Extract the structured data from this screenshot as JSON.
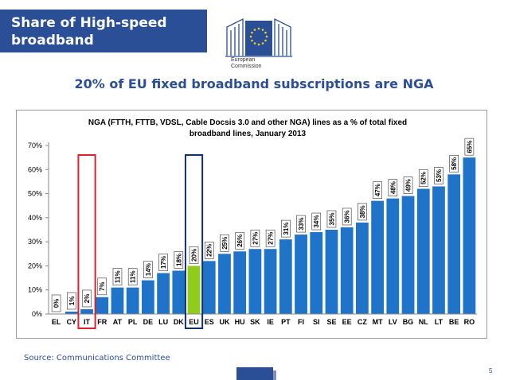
{
  "slide": {
    "title": "Share of High-speed broadband",
    "headline": "20% of EU fixed broadband subscriptions are NGA",
    "source": "Source: Communications Committee",
    "page_number": "5",
    "logo_text_line1": "European",
    "logo_text_line2": "Commission"
  },
  "colors": {
    "title_bg": "#2a4f96",
    "bar": "#1f73c8",
    "bar_highlight": "#92cc1a",
    "box_it": "#e0202a",
    "box_eu": "#14306a"
  },
  "chart_data": {
    "type": "bar",
    "title": "NGA (FTTH, FTTB, VDSL, Cable Docsis 3.0 and other NGA) lines as a % of total fixed broadband lines, January 2013",
    "title_line1": "NGA (FTTH, FTTB, VDSL, Cable Docsis 3.0 and other NGA) lines as a % of total fixed",
    "title_line2": "broadband lines, January 2013",
    "categories": [
      "EL",
      "CY",
      "IT",
      "FR",
      "AT",
      "PL",
      "DE",
      "LU",
      "DK",
      "EU",
      "ES",
      "UK",
      "HU",
      "SK",
      "IE",
      "PT",
      "FI",
      "SI",
      "SE",
      "EE",
      "CZ",
      "MT",
      "LV",
      "BG",
      "NL",
      "LT",
      "BE",
      "RO"
    ],
    "values": [
      0,
      1,
      2,
      7,
      11,
      11,
      14,
      17,
      18,
      20,
      22,
      25,
      26,
      27,
      27,
      31,
      33,
      34,
      35,
      36,
      38,
      47,
      48,
      49,
      52,
      53,
      58,
      65
    ],
    "data_labels": [
      "0%",
      "1%",
      "2%",
      "7%",
      "11%",
      "11%",
      "14%",
      "17%",
      "18%",
      "20%",
      "22%",
      "25%",
      "26%",
      "27%",
      "27%",
      "31%",
      "33%",
      "34%",
      "35%",
      "36%",
      "38%",
      "47%",
      "48%",
      "49%",
      "52%",
      "53%",
      "58%",
      "65%"
    ],
    "ylim": [
      0,
      70
    ],
    "y_ticks": [
      0,
      10,
      20,
      30,
      40,
      50,
      60,
      70
    ],
    "y_tick_labels": [
      "0%",
      "10%",
      "20%",
      "30%",
      "40%",
      "50%",
      "60%",
      "70%"
    ],
    "highlighted_category": "EU",
    "boxed_categories": [
      "IT",
      "EU"
    ],
    "grid": false,
    "legend": "none"
  }
}
